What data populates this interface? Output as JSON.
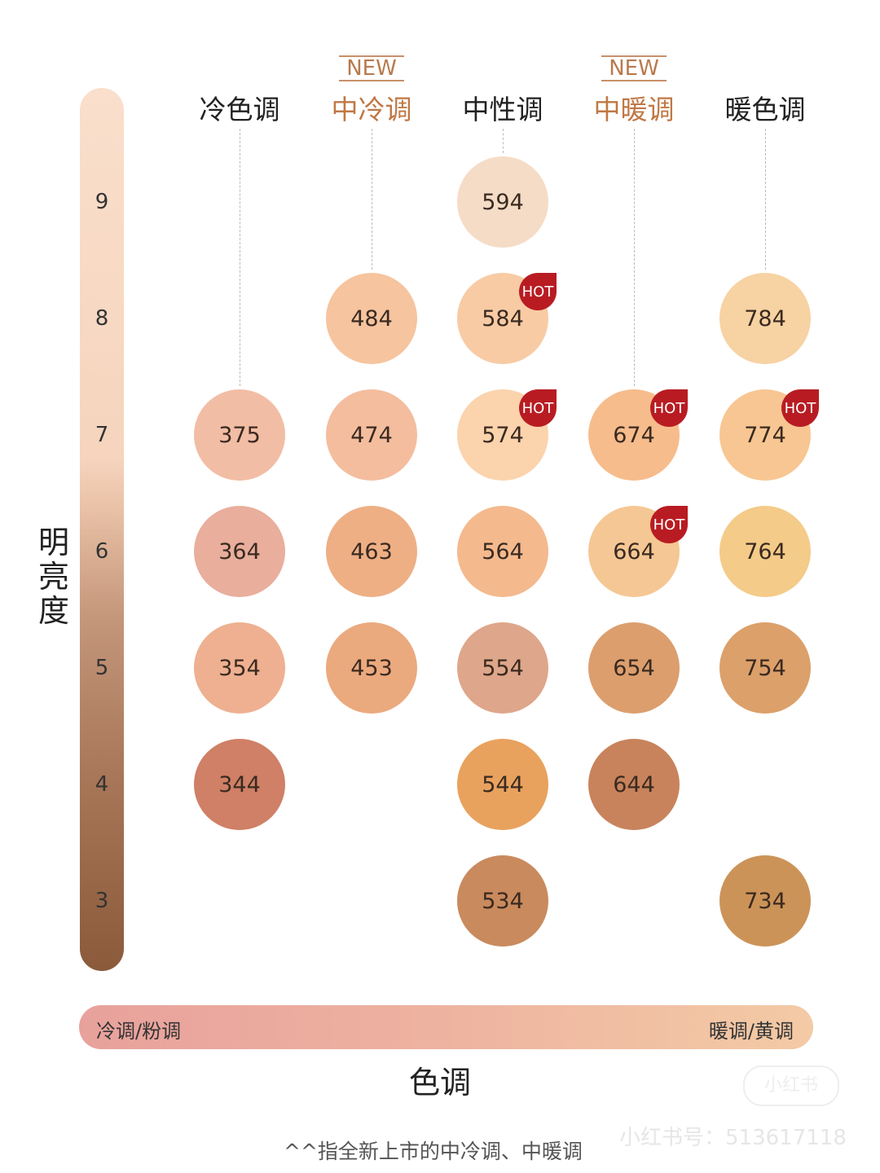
{
  "chart_data": {
    "type": "table",
    "title": "",
    "ylabel": "明亮度",
    "xlabel": "色调",
    "y_levels": [
      "9",
      "8",
      "7",
      "6",
      "5",
      "4",
      "3"
    ],
    "columns": [
      {
        "label": "冷色调",
        "new": false
      },
      {
        "label": "中冷调",
        "new": true
      },
      {
        "label": "中性调",
        "new": false
      },
      {
        "label": "中暖调",
        "new": true
      },
      {
        "label": "暖色调",
        "new": false
      }
    ],
    "new_tag": "NEW",
    "hot_tag": "HOT",
    "shades": [
      {
        "code": "594",
        "col": 2,
        "level": 9,
        "color": "#f5dcc6",
        "hot": false
      },
      {
        "code": "484",
        "col": 1,
        "level": 8,
        "color": "#f6c49e",
        "hot": false
      },
      {
        "code": "584",
        "col": 2,
        "level": 8,
        "color": "#f8cba4",
        "hot": true
      },
      {
        "code": "784",
        "col": 4,
        "level": 8,
        "color": "#f7d2a2",
        "hot": false
      },
      {
        "code": "375",
        "col": 0,
        "level": 7,
        "color": "#f2bda5",
        "hot": false
      },
      {
        "code": "474",
        "col": 1,
        "level": 7,
        "color": "#f4bd9e",
        "hot": false
      },
      {
        "code": "574",
        "col": 2,
        "level": 7,
        "color": "#fbd3ad",
        "hot": true
      },
      {
        "code": "674",
        "col": 3,
        "level": 7,
        "color": "#f7bc8c",
        "hot": true
      },
      {
        "code": "774",
        "col": 4,
        "level": 7,
        "color": "#f8c692",
        "hot": true
      },
      {
        "code": "364",
        "col": 0,
        "level": 6,
        "color": "#e9ae9c",
        "hot": false
      },
      {
        "code": "463",
        "col": 1,
        "level": 6,
        "color": "#eeaf85",
        "hot": false
      },
      {
        "code": "564",
        "col": 2,
        "level": 6,
        "color": "#f4b98d",
        "hot": false
      },
      {
        "code": "664",
        "col": 3,
        "level": 6,
        "color": "#f5c794",
        "hot": true
      },
      {
        "code": "764",
        "col": 4,
        "level": 6,
        "color": "#f4cb88",
        "hot": false
      },
      {
        "code": "354",
        "col": 0,
        "level": 5,
        "color": "#eeb090",
        "hot": false
      },
      {
        "code": "453",
        "col": 1,
        "level": 5,
        "color": "#eba97e",
        "hot": false
      },
      {
        "code": "554",
        "col": 2,
        "level": 5,
        "color": "#dea68a",
        "hot": false
      },
      {
        "code": "654",
        "col": 3,
        "level": 5,
        "color": "#dc9e6d",
        "hot": false
      },
      {
        "code": "754",
        "col": 4,
        "level": 5,
        "color": "#dca06a",
        "hot": false
      },
      {
        "code": "344",
        "col": 0,
        "level": 4,
        "color": "#cf8066",
        "hot": false
      },
      {
        "code": "544",
        "col": 2,
        "level": 4,
        "color": "#e8a25e",
        "hot": false
      },
      {
        "code": "644",
        "col": 3,
        "level": 4,
        "color": "#c8835c",
        "hot": false
      },
      {
        "code": "534",
        "col": 2,
        "level": 3,
        "color": "#c98a5d",
        "hot": false
      },
      {
        "code": "734",
        "col": 4,
        "level": 3,
        "color": "#cc9358",
        "hot": false
      }
    ],
    "tone_axis": {
      "left": "冷调/粉调",
      "right": "暖调/黄调"
    }
  },
  "footnote": "^^指全新上市的中冷调、中暖调",
  "watermark": "小红书号：513617118",
  "watermark_logo": "小红书"
}
